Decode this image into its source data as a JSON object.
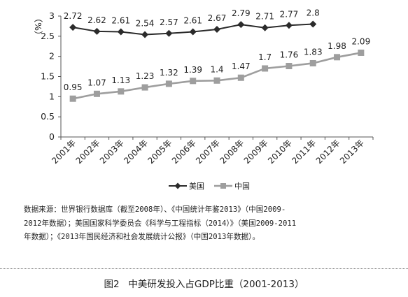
{
  "chart_data": {
    "type": "line",
    "ylabel": "（%）",
    "ylim": [
      0,
      3
    ],
    "yticks": [
      "0",
      "0.5",
      "1",
      "1.5",
      "2",
      "2.5",
      "3"
    ],
    "categories": [
      "2001年",
      "2002年",
      "2003年",
      "2004年",
      "2005年",
      "2006年",
      "2007年",
      "2008年",
      "2009年",
      "2010年",
      "2011年",
      "2012年",
      "2013年"
    ],
    "series": [
      {
        "name": "美国",
        "values": [
          2.72,
          2.62,
          2.61,
          2.54,
          2.57,
          2.61,
          2.67,
          2.79,
          2.71,
          2.77,
          2.8,
          null,
          null
        ],
        "labels": [
          "2.72",
          "2.62",
          "2.61",
          "2.54",
          "2.57",
          "2.61",
          "2.67",
          "2.79",
          "2.71",
          "2.77",
          "2.8",
          "",
          ""
        ],
        "color": "#2b2b2b",
        "marker": "diamond"
      },
      {
        "name": "中国",
        "values": [
          0.95,
          1.07,
          1.13,
          1.23,
          1.32,
          1.39,
          1.4,
          1.47,
          1.7,
          1.76,
          1.83,
          1.98,
          2.09
        ],
        "labels": [
          "0.95",
          "1.07",
          "1.13",
          "1.23",
          "1.32",
          "1.39",
          "1.4",
          "1.47",
          "1.7",
          "1.76",
          "1.83",
          "1.98",
          "2.09"
        ],
        "color": "#9e9e9e",
        "marker": "square"
      }
    ],
    "legend_position": "bottom-center",
    "grid": false
  },
  "note": {
    "lines": [
      "数据来源：世界银行数据库（截至2008年）、《中国统计年鉴2013》（中国2009-",
      "2012年数据）；美国国家科学委员会《科学与工程指标（2014）》（美国2009-2011",
      "年数据）；《2013年国民经济和社会发展统计公报》（中国2013年数据）。"
    ]
  },
  "caption": "图2   中美研发投入占GDP比重（2001-2013）"
}
